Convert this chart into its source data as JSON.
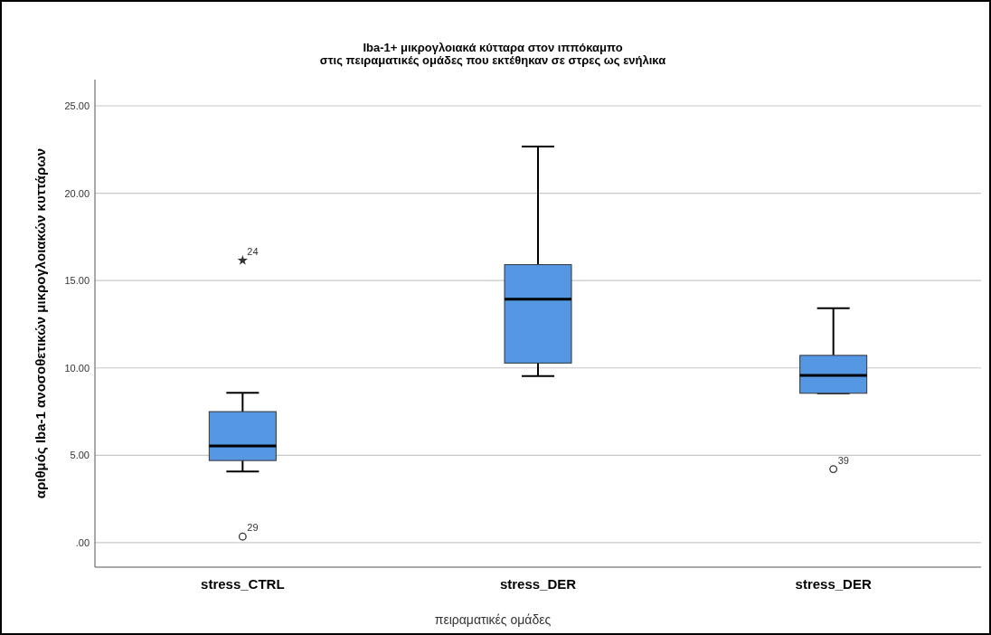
{
  "chart_data": {
    "type": "box",
    "title": "Iba-1+ μικρογλοιακά κύτταρα στον ιππόκαμπο\nστις πειραματικές ομάδες που εκτέθηκαν σε στρες ως ενήλικα",
    "xlabel": "πειραματικές ομάδες",
    "ylabel": "αριθμός Iba-1 ανοσοθετικών μικρογλοιακών κυττάρων",
    "categories": [
      "stress_CTRL",
      "stress_DER",
      "stress_DER"
    ],
    "color": "#5597e3",
    "boxes": [
      {
        "low": 4.07,
        "q1": 4.7,
        "median": 5.54,
        "q3": 7.5,
        "high": 8.58,
        "outliers": [
          16.15,
          0.35
        ]
      },
      {
        "low": 9.54,
        "q1": 10.28,
        "median": 13.94,
        "q3": 15.91,
        "high": 22.67
      },
      {
        "low": 8.55,
        "q1": 8.55,
        "median": 9.57,
        "q3": 10.72,
        "high": 13.42,
        "outliers": [
          4.21
        ]
      }
    ],
    "ylim": [
      -1.4,
      26.5
    ],
    "yticks": [
      {
        "value": 0,
        "label": ".00"
      },
      {
        "value": 5,
        "label": "5.00"
      },
      {
        "value": 10,
        "label": "10.00"
      },
      {
        "value": 15,
        "label": "15.00"
      },
      {
        "value": 20,
        "label": "20.00"
      },
      {
        "value": 25,
        "label": "25.00"
      }
    ],
    "grid": "y",
    "annotations": [
      "24",
      "29",
      "39"
    ]
  }
}
